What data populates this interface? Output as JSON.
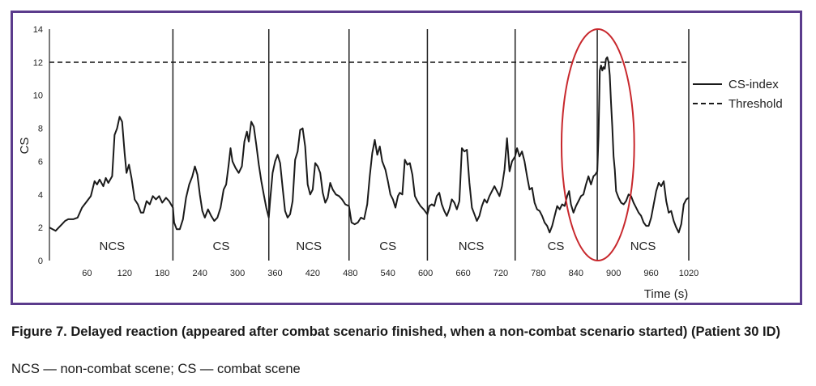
{
  "chart_data": {
    "type": "line",
    "xlabel": "Time (s)",
    "ylabel": "CS",
    "xlim": [
      0,
      1020
    ],
    "ylim": [
      0,
      14
    ],
    "x_ticks": [
      60,
      120,
      180,
      240,
      300,
      360,
      420,
      480,
      540,
      600,
      660,
      720,
      780,
      840,
      900,
      960,
      1020
    ],
    "y_ticks": [
      0,
      2,
      4,
      6,
      8,
      10,
      12,
      14
    ],
    "threshold": 12,
    "legend": {
      "placement": "right",
      "entries": [
        "CS-index",
        "Threshold"
      ]
    },
    "scene_boundaries": [
      197,
      350,
      478,
      603,
      743,
      874,
      1020
    ],
    "scenes": [
      {
        "label": "NCS",
        "x": 100
      },
      {
        "label": "CS",
        "x": 274
      },
      {
        "label": "NCS",
        "x": 414
      },
      {
        "label": "CS",
        "x": 540
      },
      {
        "label": "NCS",
        "x": 673
      },
      {
        "label": "CS",
        "x": 808
      },
      {
        "label": "NCS",
        "x": 947
      }
    ],
    "highlight": {
      "shape": "ellipse",
      "x_center": 875,
      "y_center": 7,
      "x_radius": 58,
      "y_radius": 7,
      "color": "#c8282d"
    },
    "series": [
      {
        "name": "CS-index",
        "style": "solid",
        "points": [
          [
            0,
            2.0
          ],
          [
            5,
            1.9
          ],
          [
            10,
            1.8
          ],
          [
            15,
            2.0
          ],
          [
            20,
            2.2
          ],
          [
            25,
            2.4
          ],
          [
            30,
            2.5
          ],
          [
            38,
            2.5
          ],
          [
            45,
            2.6
          ],
          [
            52,
            3.2
          ],
          [
            58,
            3.5
          ],
          [
            62,
            3.7
          ],
          [
            66,
            3.9
          ],
          [
            72,
            4.8
          ],
          [
            76,
            4.6
          ],
          [
            80,
            4.9
          ],
          [
            86,
            4.5
          ],
          [
            90,
            5.0
          ],
          [
            94,
            4.7
          ],
          [
            100,
            5.1
          ],
          [
            104,
            7.6
          ],
          [
            108,
            8.0
          ],
          [
            112,
            8.7
          ],
          [
            116,
            8.4
          ],
          [
            120,
            6.5
          ],
          [
            123,
            5.3
          ],
          [
            127,
            5.8
          ],
          [
            131,
            5.0
          ],
          [
            136,
            3.7
          ],
          [
            141,
            3.4
          ],
          [
            146,
            2.9
          ],
          [
            150,
            2.9
          ],
          [
            155,
            3.6
          ],
          [
            160,
            3.4
          ],
          [
            165,
            3.9
          ],
          [
            170,
            3.7
          ],
          [
            175,
            3.9
          ],
          [
            180,
            3.5
          ],
          [
            186,
            3.8
          ],
          [
            191,
            3.6
          ],
          [
            197,
            3.2
          ],
          [
            199,
            2.3
          ],
          [
            203,
            1.9
          ],
          [
            208,
            1.9
          ],
          [
            213,
            2.5
          ],
          [
            218,
            3.8
          ],
          [
            223,
            4.6
          ],
          [
            228,
            5.1
          ],
          [
            232,
            5.7
          ],
          [
            236,
            5.2
          ],
          [
            240,
            4.0
          ],
          [
            244,
            3.0
          ],
          [
            248,
            2.6
          ],
          [
            253,
            3.1
          ],
          [
            258,
            2.7
          ],
          [
            263,
            2.4
          ],
          [
            268,
            2.6
          ],
          [
            273,
            3.2
          ],
          [
            278,
            4.3
          ],
          [
            282,
            4.6
          ],
          [
            286,
            5.8
          ],
          [
            289,
            6.8
          ],
          [
            292,
            6.0
          ],
          [
            297,
            5.6
          ],
          [
            302,
            5.3
          ],
          [
            307,
            5.7
          ],
          [
            311,
            7.2
          ],
          [
            315,
            7.8
          ],
          [
            318,
            7.2
          ],
          [
            322,
            8.4
          ],
          [
            326,
            8.1
          ],
          [
            330,
            7.0
          ],
          [
            334,
            5.8
          ],
          [
            338,
            4.8
          ],
          [
            342,
            4.0
          ],
          [
            346,
            3.2
          ],
          [
            350,
            2.6
          ],
          [
            352,
            3.6
          ],
          [
            356,
            5.3
          ],
          [
            360,
            6.0
          ],
          [
            364,
            6.4
          ],
          [
            368,
            5.9
          ],
          [
            372,
            4.4
          ],
          [
            376,
            3.0
          ],
          [
            380,
            2.6
          ],
          [
            384,
            2.8
          ],
          [
            388,
            3.6
          ],
          [
            392,
            6.1
          ],
          [
            396,
            6.6
          ],
          [
            400,
            7.9
          ],
          [
            404,
            8.0
          ],
          [
            408,
            6.9
          ],
          [
            412,
            4.6
          ],
          [
            416,
            4.0
          ],
          [
            420,
            4.3
          ],
          [
            424,
            5.9
          ],
          [
            428,
            5.7
          ],
          [
            432,
            5.3
          ],
          [
            436,
            4.1
          ],
          [
            440,
            3.5
          ],
          [
            444,
            3.8
          ],
          [
            448,
            4.7
          ],
          [
            452,
            4.3
          ],
          [
            457,
            4.0
          ],
          [
            462,
            3.9
          ],
          [
            467,
            3.7
          ],
          [
            472,
            3.4
          ],
          [
            478,
            3.3
          ],
          [
            482,
            2.3
          ],
          [
            487,
            2.2
          ],
          [
            492,
            2.3
          ],
          [
            497,
            2.6
          ],
          [
            502,
            2.5
          ],
          [
            507,
            3.4
          ],
          [
            511,
            5.1
          ],
          [
            515,
            6.5
          ],
          [
            519,
            7.3
          ],
          [
            523,
            6.4
          ],
          [
            527,
            6.9
          ],
          [
            531,
            6.0
          ],
          [
            536,
            5.5
          ],
          [
            540,
            4.8
          ],
          [
            544,
            4.0
          ],
          [
            548,
            3.7
          ],
          [
            552,
            3.2
          ],
          [
            556,
            3.9
          ],
          [
            559,
            4.1
          ],
          [
            563,
            4.0
          ],
          [
            567,
            6.1
          ],
          [
            571,
            5.8
          ],
          [
            575,
            5.9
          ],
          [
            579,
            5.2
          ],
          [
            583,
            3.9
          ],
          [
            587,
            3.6
          ],
          [
            592,
            3.3
          ],
          [
            597,
            3.1
          ],
          [
            603,
            2.8
          ],
          [
            606,
            3.3
          ],
          [
            610,
            3.4
          ],
          [
            614,
            3.3
          ],
          [
            618,
            3.9
          ],
          [
            622,
            4.1
          ],
          [
            626,
            3.4
          ],
          [
            630,
            3.0
          ],
          [
            634,
            2.7
          ],
          [
            638,
            3.1
          ],
          [
            642,
            3.7
          ],
          [
            646,
            3.5
          ],
          [
            650,
            3.1
          ],
          [
            654,
            3.6
          ],
          [
            658,
            6.8
          ],
          [
            662,
            6.6
          ],
          [
            666,
            6.7
          ],
          [
            670,
            4.7
          ],
          [
            674,
            3.2
          ],
          [
            678,
            2.8
          ],
          [
            682,
            2.4
          ],
          [
            686,
            2.7
          ],
          [
            690,
            3.3
          ],
          [
            694,
            3.7
          ],
          [
            698,
            3.5
          ],
          [
            702,
            3.9
          ],
          [
            706,
            4.2
          ],
          [
            710,
            4.5
          ],
          [
            714,
            4.2
          ],
          [
            718,
            3.9
          ],
          [
            722,
            4.5
          ],
          [
            726,
            5.5
          ],
          [
            730,
            7.4
          ],
          [
            734,
            5.4
          ],
          [
            738,
            6.0
          ],
          [
            743,
            6.3
          ],
          [
            746,
            6.8
          ],
          [
            750,
            6.3
          ],
          [
            754,
            6.6
          ],
          [
            758,
            6.0
          ],
          [
            762,
            5.1
          ],
          [
            766,
            4.3
          ],
          [
            770,
            4.4
          ],
          [
            774,
            3.5
          ],
          [
            778,
            3.1
          ],
          [
            782,
            3.0
          ],
          [
            786,
            2.7
          ],
          [
            790,
            2.3
          ],
          [
            794,
            2.1
          ],
          [
            798,
            1.7
          ],
          [
            802,
            2.1
          ],
          [
            806,
            2.7
          ],
          [
            810,
            3.3
          ],
          [
            814,
            3.1
          ],
          [
            818,
            3.4
          ],
          [
            822,
            3.3
          ],
          [
            826,
            3.9
          ],
          [
            829,
            4.2
          ],
          [
            832,
            3.4
          ],
          [
            836,
            2.9
          ],
          [
            840,
            3.3
          ],
          [
            844,
            3.6
          ],
          [
            848,
            3.9
          ],
          [
            852,
            4.0
          ],
          [
            856,
            4.6
          ],
          [
            860,
            5.1
          ],
          [
            864,
            4.6
          ],
          [
            868,
            5.1
          ],
          [
            871,
            5.2
          ],
          [
            874,
            5.4
          ],
          [
            876,
            7.5
          ],
          [
            878,
            11.5
          ],
          [
            880,
            11.8
          ],
          [
            882,
            11.5
          ],
          [
            884,
            11.7
          ],
          [
            886,
            11.6
          ],
          [
            888,
            12.2
          ],
          [
            890,
            12.3
          ],
          [
            892,
            12.0
          ],
          [
            894,
            11.2
          ],
          [
            896,
            9.5
          ],
          [
            898,
            8.1
          ],
          [
            900,
            6.3
          ],
          [
            902,
            5.5
          ],
          [
            904,
            4.2
          ],
          [
            906,
            4.0
          ],
          [
            908,
            3.8
          ],
          [
            912,
            3.5
          ],
          [
            916,
            3.4
          ],
          [
            920,
            3.6
          ],
          [
            924,
            4.0
          ],
          [
            928,
            3.9
          ],
          [
            932,
            3.5
          ],
          [
            936,
            3.2
          ],
          [
            940,
            2.9
          ],
          [
            944,
            2.7
          ],
          [
            948,
            2.3
          ],
          [
            952,
            2.1
          ],
          [
            956,
            2.1
          ],
          [
            960,
            2.6
          ],
          [
            964,
            3.4
          ],
          [
            968,
            4.2
          ],
          [
            972,
            4.7
          ],
          [
            976,
            4.5
          ],
          [
            980,
            4.8
          ],
          [
            984,
            3.6
          ],
          [
            988,
            2.9
          ],
          [
            992,
            3.0
          ],
          [
            996,
            2.4
          ],
          [
            1000,
            2.0
          ],
          [
            1004,
            1.7
          ],
          [
            1008,
            2.2
          ],
          [
            1012,
            3.4
          ],
          [
            1016,
            3.7
          ],
          [
            1020,
            3.8
          ]
        ]
      },
      {
        "name": "Threshold",
        "style": "dashed",
        "points": [
          [
            0,
            12
          ],
          [
            1020,
            12
          ]
        ]
      }
    ]
  },
  "caption": {
    "title": "Figure 7. Delayed reaction (appeared after combat scenario finished, when a non-combat scenario started) (Patient 30 ID)",
    "note": "NCS — non-combat scene; CS — combat scene"
  },
  "colors": {
    "frame": "#5b3b8c",
    "line": "#1a1a1a",
    "highlight": "#c8282d",
    "grid": "#222222"
  }
}
